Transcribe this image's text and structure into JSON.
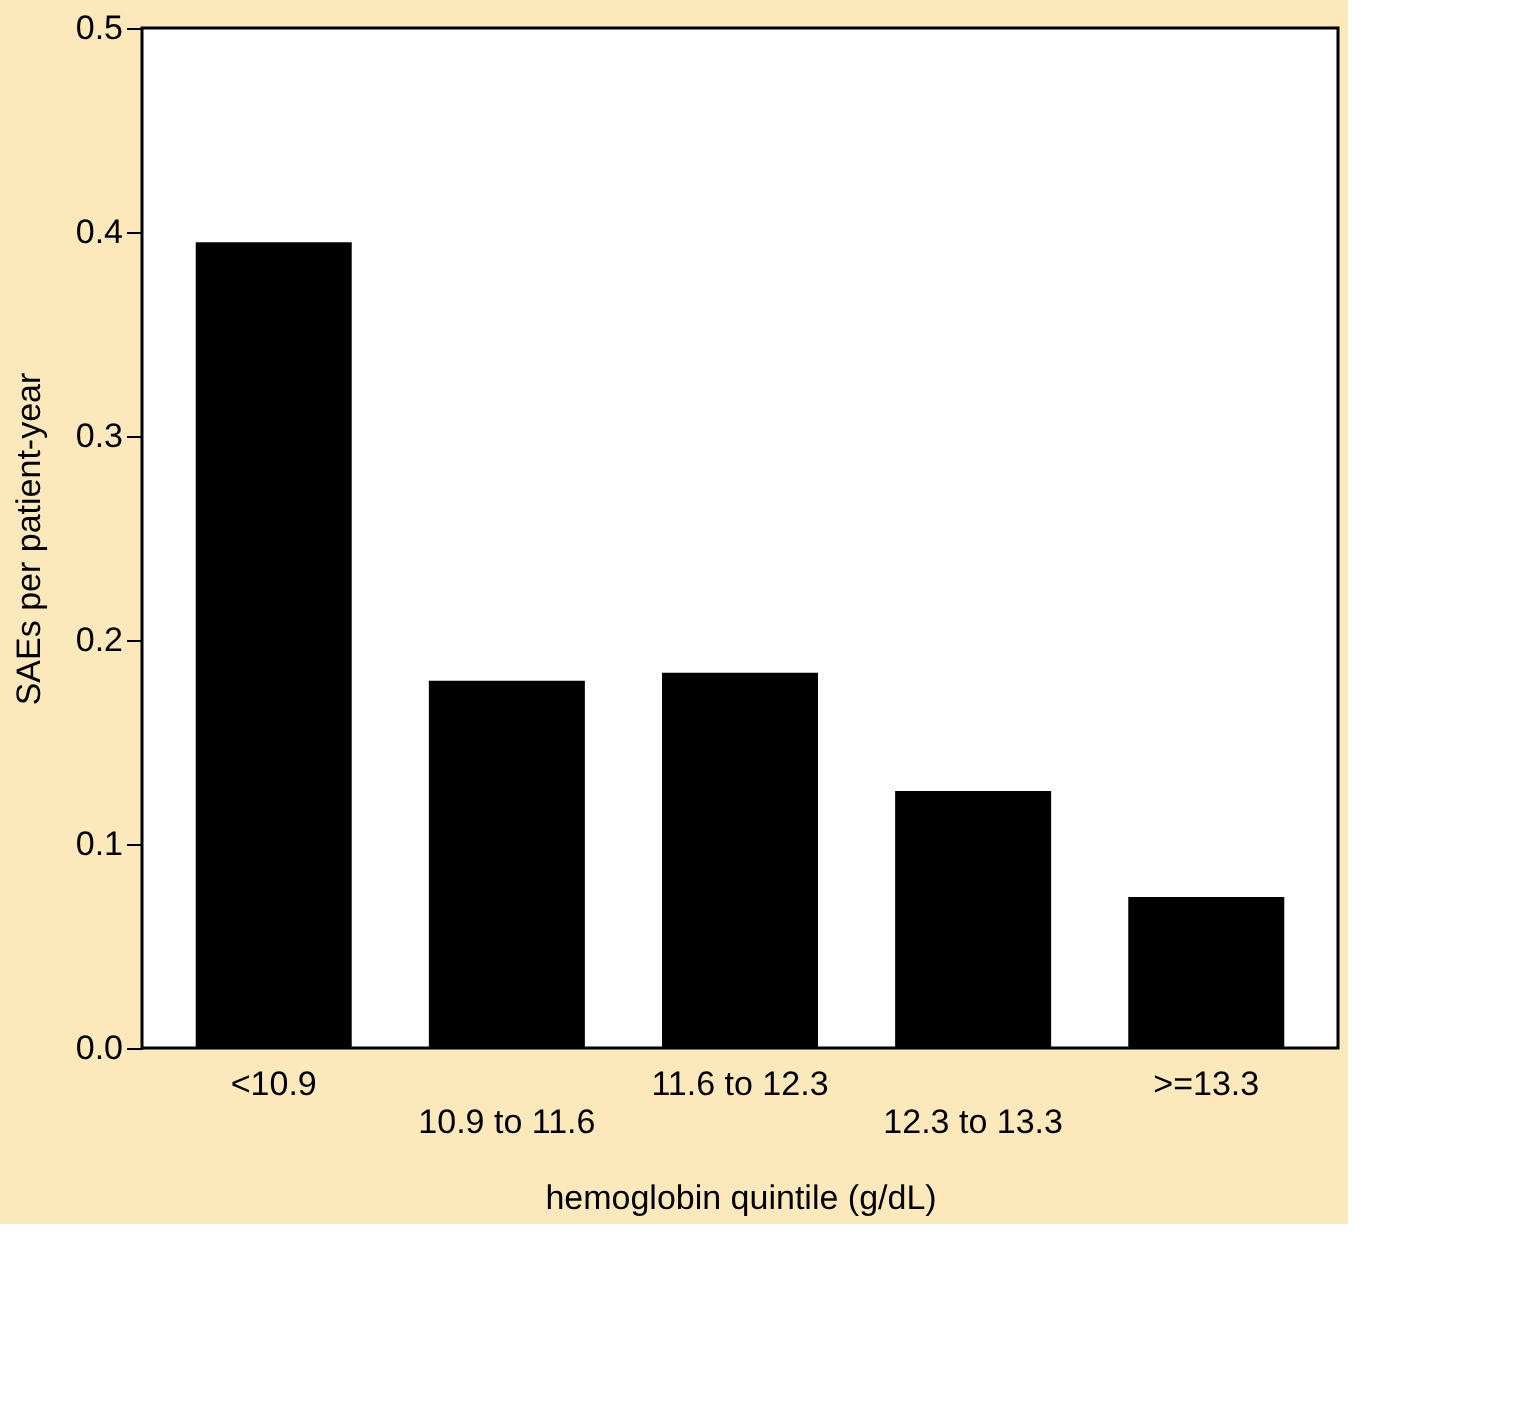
{
  "chart_data": {
    "type": "bar",
    "xlabel": "hemoglobin quintile (g/dL)",
    "ylabel": "SAEs per patient-year",
    "categories": [
      "<10.9",
      "10.9 to 11.6",
      "11.6 to 12.3",
      "12.3 to 13.3",
      ">=13.3"
    ],
    "values": [
      0.395,
      0.18,
      0.184,
      0.126,
      0.074
    ],
    "color": "#000000",
    "ylim": [
      0,
      0.5
    ],
    "yticks": [
      {
        "value": 0,
        "label": "0.0"
      },
      0.1,
      0.2,
      0.3,
      0.4,
      0.5
    ],
    "grid": false
  }
}
